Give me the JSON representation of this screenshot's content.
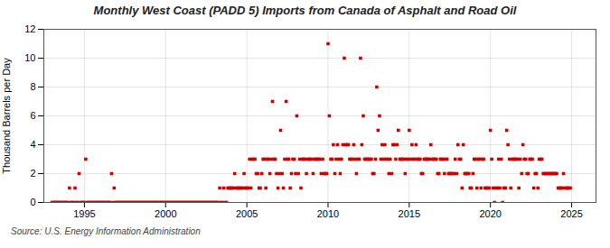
{
  "chart_data": {
    "type": "scatter",
    "title": "Monthly West Coast (PADD 5) Imports from Canada of Asphalt and Road Oil",
    "y_label": "Thousand Barrels per Day",
    "source": "Source: U.S. Energy Information Administration",
    "color": "#cc0000",
    "marker": "square",
    "grid": true,
    "xlim": [
      1992.5,
      2026.5
    ],
    "xticks": [
      1995,
      2000,
      2005,
      2010,
      2015,
      2020,
      2025
    ],
    "ylim": [
      0,
      12
    ],
    "yticks": [
      0,
      2,
      4,
      6,
      8,
      10,
      12
    ],
    "x": [
      1993.0,
      1993.08,
      1993.17,
      1993.25,
      1993.33,
      1993.42,
      1993.5,
      1993.58,
      1993.67,
      1993.75,
      1993.83,
      1993.92,
      1994.0,
      1994.08,
      1994.17,
      1994.25,
      1994.33,
      1994.42,
      1994.5,
      1994.58,
      1994.67,
      1994.75,
      1994.83,
      1994.92,
      1995.0,
      1995.08,
      1995.17,
      1995.25,
      1995.33,
      1995.42,
      1995.5,
      1995.58,
      1995.67,
      1995.75,
      1995.83,
      1995.92,
      1996.0,
      1996.08,
      1996.17,
      1996.25,
      1996.33,
      1996.42,
      1996.5,
      1996.58,
      1996.67,
      1996.75,
      1996.83,
      1996.92,
      1997.0,
      1997.08,
      1997.17,
      1997.25,
      1997.33,
      1997.42,
      1997.5,
      1997.58,
      1997.67,
      1997.75,
      1997.83,
      1997.92,
      1998.0,
      1998.08,
      1998.17,
      1998.25,
      1998.33,
      1998.42,
      1998.5,
      1998.58,
      1998.67,
      1998.75,
      1998.83,
      1998.92,
      1999.0,
      1999.08,
      1999.17,
      1999.25,
      1999.33,
      1999.42,
      1999.5,
      1999.58,
      1999.67,
      1999.75,
      1999.83,
      1999.92,
      2000.0,
      2000.08,
      2000.17,
      2000.25,
      2000.33,
      2000.42,
      2000.5,
      2000.58,
      2000.67,
      2000.75,
      2000.83,
      2000.92,
      2001.0,
      2001.08,
      2001.17,
      2001.25,
      2001.33,
      2001.42,
      2001.5,
      2001.58,
      2001.67,
      2001.75,
      2001.83,
      2001.92,
      2002.0,
      2002.08,
      2002.17,
      2002.25,
      2002.33,
      2002.42,
      2002.5,
      2002.58,
      2002.67,
      2002.75,
      2002.83,
      2002.92,
      2003.0,
      2003.08,
      2003.17,
      2003.25,
      2003.33,
      2003.42,
      2003.5,
      2003.58,
      2003.67,
      2003.75,
      2003.83,
      2003.92,
      2004.0,
      2004.08,
      2004.17,
      2004.25,
      2004.33,
      2004.42,
      2004.5,
      2004.58,
      2004.67,
      2004.75,
      2004.83,
      2004.92,
      2005.0,
      2005.08,
      2005.17,
      2005.25,
      2005.33,
      2005.42,
      2005.5,
      2005.58,
      2005.67,
      2005.75,
      2005.83,
      2005.92,
      2006.0,
      2006.08,
      2006.17,
      2006.25,
      2006.33,
      2006.42,
      2006.5,
      2006.58,
      2006.67,
      2006.75,
      2006.83,
      2006.92,
      2007.0,
      2007.08,
      2007.17,
      2007.25,
      2007.33,
      2007.42,
      2007.5,
      2007.58,
      2007.67,
      2007.75,
      2007.83,
      2007.92,
      2008.0,
      2008.08,
      2008.17,
      2008.25,
      2008.33,
      2008.42,
      2008.5,
      2008.58,
      2008.67,
      2008.75,
      2008.83,
      2008.92,
      2009.0,
      2009.08,
      2009.17,
      2009.25,
      2009.33,
      2009.42,
      2009.5,
      2009.58,
      2009.67,
      2009.75,
      2009.83,
      2009.92,
      2010.0,
      2010.08,
      2010.17,
      2010.25,
      2010.33,
      2010.42,
      2010.5,
      2010.58,
      2010.67,
      2010.75,
      2010.83,
      2010.92,
      2011.0,
      2011.08,
      2011.17,
      2011.25,
      2011.33,
      2011.42,
      2011.5,
      2011.58,
      2011.67,
      2011.75,
      2011.83,
      2011.92,
      2012.0,
      2012.08,
      2012.17,
      2012.25,
      2012.33,
      2012.42,
      2012.5,
      2012.58,
      2012.67,
      2012.75,
      2012.83,
      2012.92,
      2013.0,
      2013.08,
      2013.17,
      2013.25,
      2013.33,
      2013.42,
      2013.5,
      2013.58,
      2013.67,
      2013.75,
      2013.83,
      2013.92,
      2014.0,
      2014.08,
      2014.17,
      2014.25,
      2014.33,
      2014.42,
      2014.5,
      2014.58,
      2014.67,
      2014.75,
      2014.83,
      2014.92,
      2015.0,
      2015.08,
      2015.17,
      2015.25,
      2015.33,
      2015.42,
      2015.5,
      2015.58,
      2015.67,
      2015.75,
      2015.83,
      2015.92,
      2016.0,
      2016.08,
      2016.17,
      2016.25,
      2016.33,
      2016.42,
      2016.5,
      2016.58,
      2016.67,
      2016.75,
      2016.83,
      2016.92,
      2017.0,
      2017.08,
      2017.17,
      2017.25,
      2017.33,
      2017.42,
      2017.5,
      2017.58,
      2017.67,
      2017.75,
      2017.83,
      2017.92,
      2018.0,
      2018.08,
      2018.17,
      2018.25,
      2018.33,
      2018.42,
      2018.5,
      2018.58,
      2018.67,
      2018.75,
      2018.83,
      2018.92,
      2019.0,
      2019.08,
      2019.17,
      2019.25,
      2019.33,
      2019.42,
      2019.5,
      2019.58,
      2019.67,
      2019.75,
      2019.83,
      2019.92,
      2020.0,
      2020.08,
      2020.17,
      2020.25,
      2020.33,
      2020.42,
      2020.5,
      2020.58,
      2020.67,
      2020.75,
      2020.83,
      2020.92,
      2021.0,
      2021.08,
      2021.17,
      2021.25,
      2021.33,
      2021.42,
      2021.5,
      2021.58,
      2021.67,
      2021.75,
      2021.83,
      2021.92,
      2022.0,
      2022.08,
      2022.17,
      2022.25,
      2022.33,
      2022.42,
      2022.5,
      2022.58,
      2022.67,
      2022.75,
      2022.83,
      2022.92,
      2023.0,
      2023.08,
      2023.17,
      2023.25,
      2023.33,
      2023.42,
      2023.5,
      2023.58,
      2023.67,
      2023.75,
      2023.83,
      2023.92,
      2024.0,
      2024.08,
      2024.17,
      2024.25,
      2024.33,
      2024.42,
      2024.5,
      2024.58,
      2024.67,
      2024.75,
      2024.83,
      2024.92
    ],
    "values": [
      0,
      0,
      0,
      0,
      0,
      0,
      0,
      0,
      0,
      0,
      0,
      0,
      0,
      1,
      0,
      0,
      0,
      1,
      0,
      0,
      2,
      0,
      0,
      0,
      0,
      3,
      0,
      0,
      0,
      0,
      0,
      0,
      0,
      0,
      0,
      0,
      0,
      0,
      0,
      0,
      0,
      0,
      0,
      0,
      2,
      0,
      1,
      0,
      0,
      0,
      0,
      0,
      0,
      0,
      0,
      0,
      0,
      0,
      0,
      0,
      0,
      0,
      0,
      0,
      0,
      0,
      0,
      0,
      0,
      0,
      0,
      0,
      0,
      0,
      0,
      0,
      0,
      0,
      0,
      0,
      0,
      0,
      0,
      0,
      0,
      0,
      0,
      0,
      0,
      0,
      0,
      0,
      0,
      0,
      0,
      0,
      0,
      0,
      0,
      0,
      0,
      0,
      0,
      0,
      0,
      0,
      0,
      0,
      0,
      0,
      0,
      0,
      0,
      0,
      0,
      0,
      0,
      0,
      0,
      0,
      0,
      0,
      0,
      0,
      1,
      0,
      0,
      1,
      0,
      0,
      1,
      1,
      1,
      1,
      1,
      2,
      1,
      1,
      1,
      1,
      1,
      1,
      2,
      1,
      1,
      1,
      3,
      1,
      3,
      3,
      3,
      2,
      2,
      1,
      1,
      2,
      3,
      3,
      1,
      3,
      3,
      2,
      3,
      7,
      3,
      3,
      2,
      1,
      2,
      5,
      2,
      1,
      3,
      7,
      3,
      3,
      1,
      2,
      3,
      3,
      2,
      6,
      2,
      3,
      1,
      3,
      3,
      3,
      2,
      3,
      3,
      3,
      3,
      2,
      3,
      3,
      3,
      3,
      3,
      2,
      3,
      2,
      2,
      2,
      11,
      6,
      3,
      3,
      4,
      2,
      3,
      4,
      3,
      2,
      3,
      4,
      10,
      4,
      4,
      4,
      3,
      3,
      3,
      4,
      3,
      2,
      3,
      3,
      10,
      4,
      6,
      3,
      3,
      3,
      3,
      3,
      3,
      2,
      2,
      3,
      8,
      5,
      6,
      3,
      4,
      3,
      4,
      3,
      3,
      2,
      3,
      2,
      4,
      4,
      3,
      4,
      5,
      3,
      3,
      3,
      3,
      2,
      3,
      3,
      5,
      3,
      4,
      3,
      3,
      4,
      3,
      3,
      3,
      2,
      2,
      3,
      3,
      3,
      3,
      3,
      4,
      3,
      3,
      3,
      3,
      2,
      2,
      3,
      3,
      3,
      2,
      3,
      3,
      2,
      2,
      2,
      2,
      2,
      3,
      2,
      4,
      3,
      3,
      1,
      4,
      2,
      2,
      2,
      2,
      1,
      1,
      2,
      3,
      3,
      1,
      3,
      3,
      1,
      3,
      3,
      1,
      1,
      1,
      1,
      5,
      3,
      1,
      0,
      1,
      1,
      3,
      1,
      3,
      0,
      1,
      1,
      5,
      4,
      3,
      1,
      3,
      3,
      3,
      3,
      3,
      1,
      3,
      2,
      4,
      3,
      3,
      2,
      2,
      3,
      3,
      3,
      1,
      2,
      2,
      1,
      3,
      3,
      3,
      2,
      2,
      2,
      2,
      2,
      2,
      2,
      2,
      2,
      2,
      2,
      1,
      1,
      1,
      1,
      2,
      1,
      1,
      1,
      1,
      1
    ]
  }
}
